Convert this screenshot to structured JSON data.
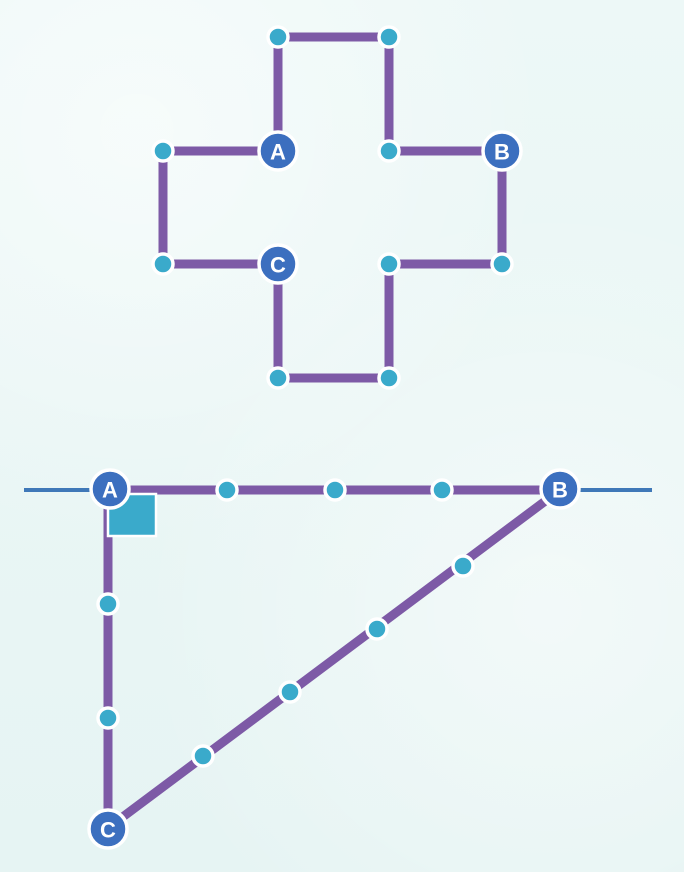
{
  "cross": {
    "vertex_labels": {
      "a": "A",
      "b": "B",
      "c": "C"
    }
  },
  "triangle": {
    "vertex_labels": {
      "a": "A",
      "b": "B",
      "c": "C"
    },
    "right_angle_at": "A"
  },
  "colors": {
    "edge": "#7d5aa6",
    "small_dot": "#3aaacb",
    "vertex": "#3c6fbf",
    "line_extension": "#3f78b8",
    "background": "#eaf6f5"
  }
}
